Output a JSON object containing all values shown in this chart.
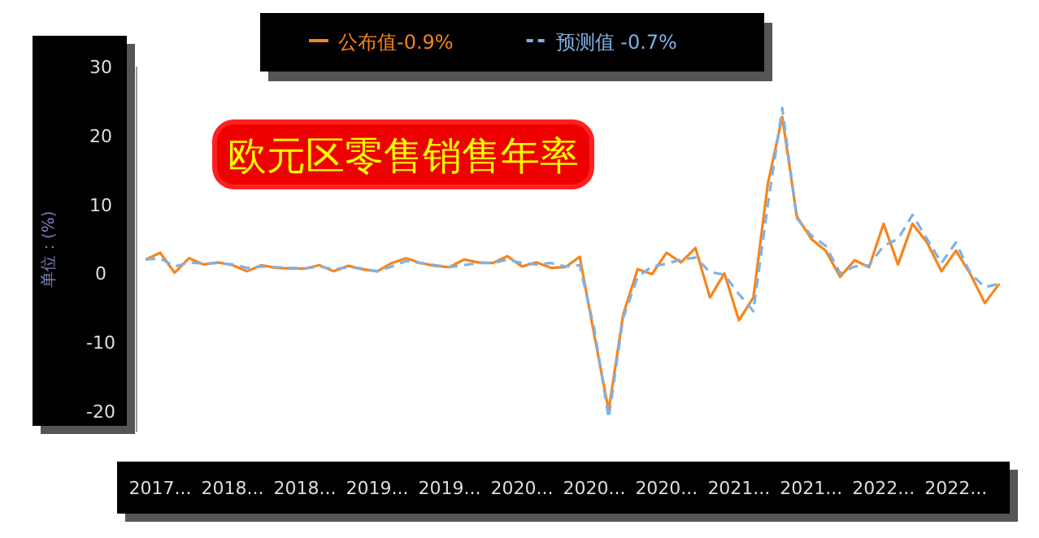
{
  "chart_data": {
    "type": "line",
    "title": "欧元区零售销售年率",
    "ylabel": "单位：(%)",
    "legend": "top",
    "categories": [
      null,
      "2017...",
      null,
      null,
      null,
      null,
      "2018...",
      null,
      null,
      null,
      null,
      "2018...",
      null,
      null,
      null,
      null,
      "2019...",
      null,
      null,
      null,
      null,
      "2019...",
      null,
      null,
      null,
      null,
      "2020...",
      null,
      null,
      null,
      null,
      "2020...",
      null,
      null,
      null,
      null,
      "2020...",
      null,
      null,
      null,
      null,
      "2021...",
      null,
      null,
      null,
      null,
      "2021...",
      null,
      null,
      null,
      null,
      "2022...",
      null,
      null,
      null,
      null,
      "2022...",
      null,
      null,
      null
    ],
    "ylim": [
      -23,
      30
    ],
    "yticks": [
      -20,
      -10,
      0,
      10,
      20,
      30
    ],
    "series": [
      {
        "name": "公布值-0.9%",
        "color": "#f7841c",
        "line_style": "solid",
        "values": [
          2.0,
          3.0,
          0.1,
          2.2,
          1.3,
          1.6,
          1.2,
          0.3,
          1.2,
          0.8,
          0.7,
          0.7,
          1.2,
          0.3,
          1.1,
          0.6,
          0.3,
          1.5,
          2.2,
          1.5,
          1.1,
          0.9,
          2.0,
          1.6,
          1.5,
          2.5,
          1.0,
          1.6,
          0.8,
          0.9,
          2.4,
          -8.9,
          -19.9,
          -6.0,
          0.6,
          -0.1,
          3.0,
          1.6,
          3.7,
          -3.5,
          0.0,
          -6.8,
          -3.5,
          13.0,
          22.7,
          8.3,
          5.0,
          3.3,
          -0.5,
          1.9,
          0.9,
          7.2,
          1.3,
          7.2,
          4.5,
          0.3,
          3.3,
          -0.1,
          -4.3,
          -1.5
        ]
      },
      {
        "name": "预测值 -0.7%",
        "color": "#7fb2e5",
        "line_style": "dashed",
        "values": [
          2.0,
          2.2,
          1.0,
          1.6,
          1.4,
          1.5,
          1.3,
          0.8,
          1.0,
          0.9,
          0.8,
          0.7,
          1.0,
          0.6,
          0.9,
          0.7,
          0.3,
          1.0,
          1.8,
          1.5,
          1.2,
          0.9,
          1.2,
          1.5,
          1.5,
          2.0,
          1.5,
          1.3,
          1.5,
          1.0,
          1.2,
          -8.0,
          -21.0,
          -6.5,
          -0.5,
          1.0,
          1.4,
          2.0,
          2.3,
          0.2,
          -0.2,
          -3.0,
          -5.5,
          10.0,
          24.0,
          8.0,
          5.5,
          4.0,
          0.0,
          1.0,
          1.2,
          4.0,
          5.0,
          8.5,
          5.0,
          1.5,
          4.5,
          0.0,
          -2.0,
          -1.5
        ]
      }
    ]
  }
}
